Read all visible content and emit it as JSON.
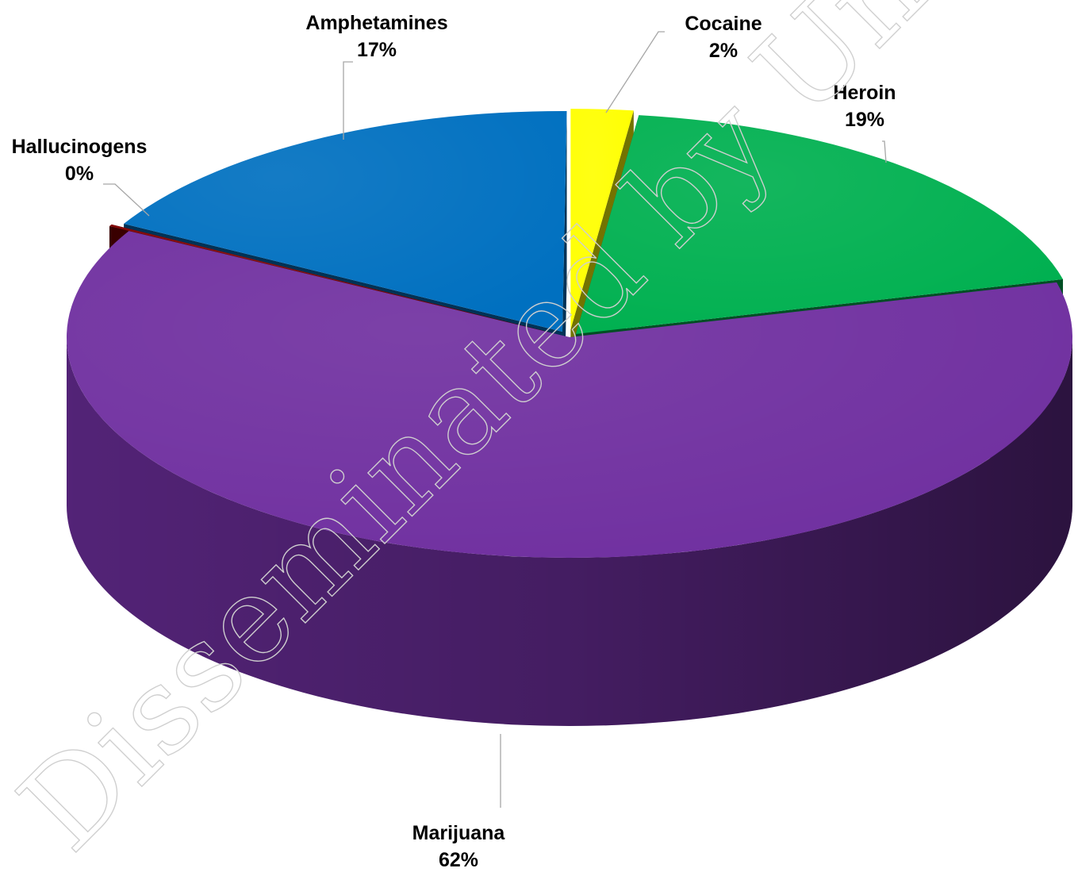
{
  "chart_data": {
    "type": "pie",
    "title": "",
    "style": "3d-exploded",
    "labels": [
      "Cocaine",
      "Heroin",
      "Marijuana",
      "Hallucinogens",
      "Amphetamines"
    ],
    "values": [
      2,
      19,
      62,
      0,
      17
    ],
    "display_percent": [
      "2%",
      "19%",
      "62%",
      "0%",
      "17%"
    ],
    "colors": [
      "#FFFF00",
      "#00B050",
      "#7030A0",
      "#7F0000",
      "#0070C0"
    ],
    "legend": "none",
    "data_labels": "category name and percentage, outside with leader lines"
  },
  "watermark": {
    "text": "Disseminated by Unodc Studies Center",
    "color": "#cfcfcf"
  }
}
